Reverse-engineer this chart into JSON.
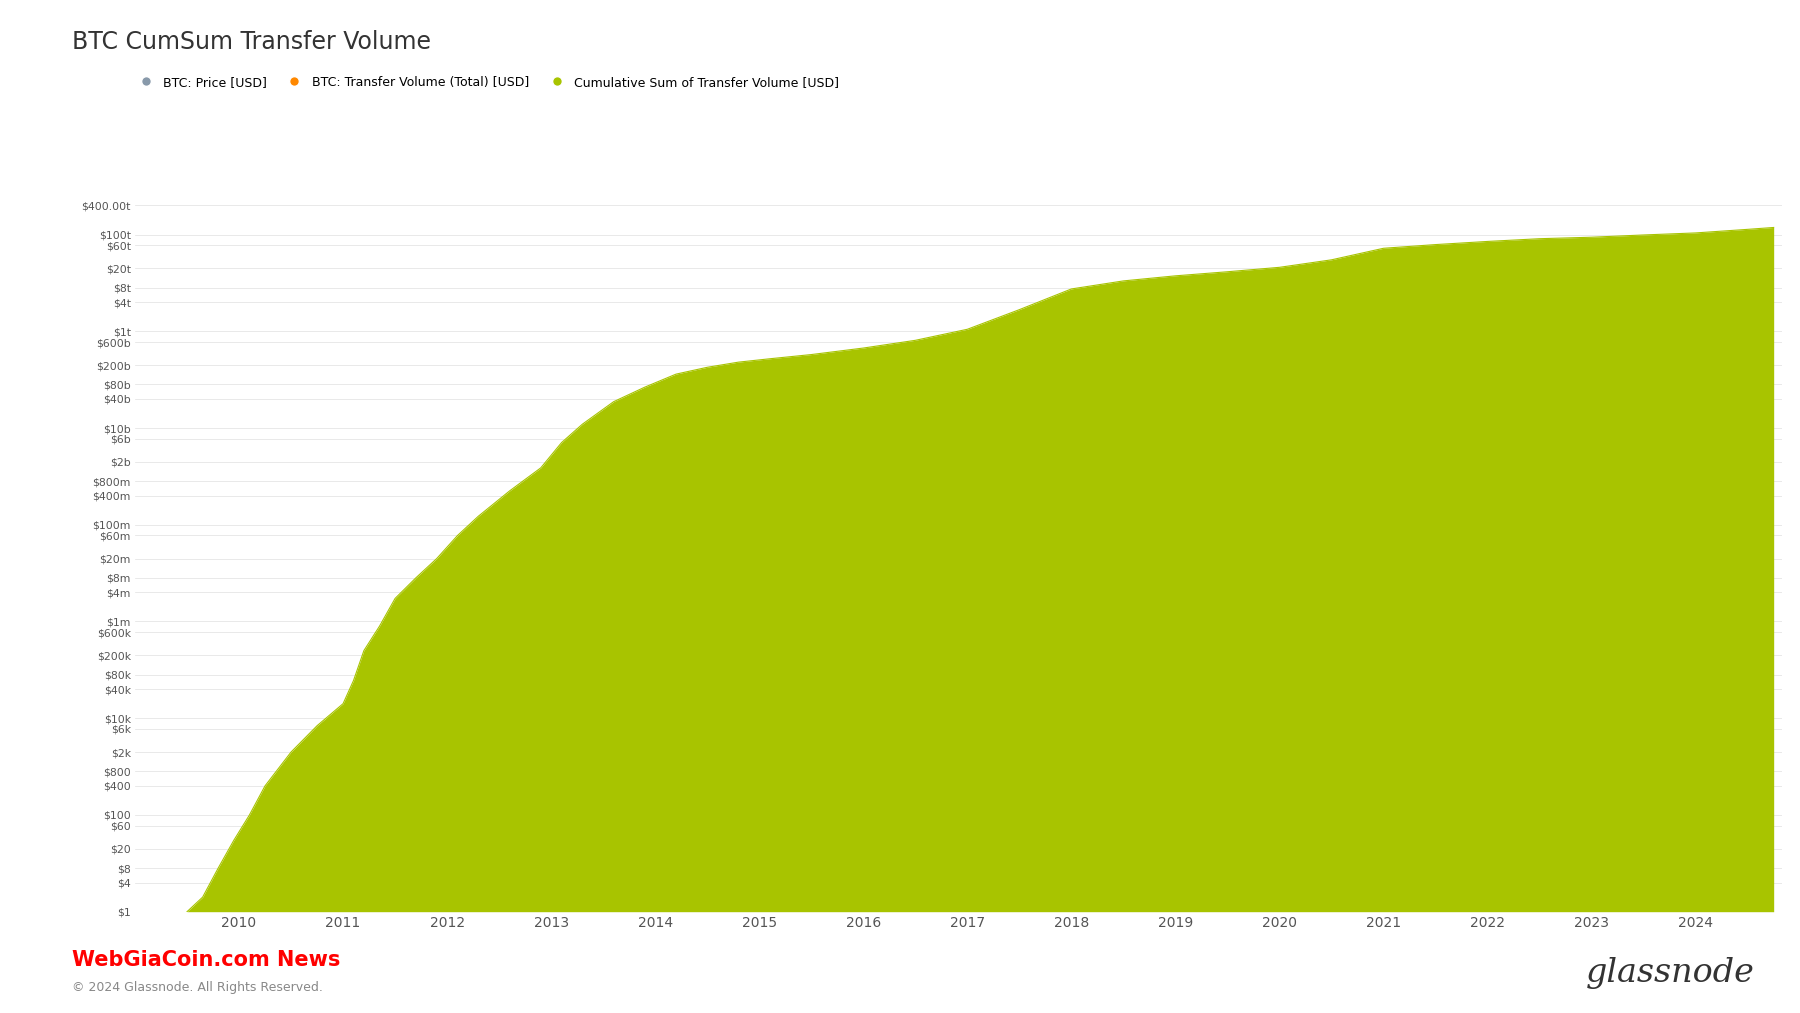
{
  "title": "BTC CumSum Transfer Volume",
  "background_color": "#ffffff",
  "fill_color": "#a8c400",
  "line_color": "#a8c400",
  "grid_color": "#e0e0e0",
  "legend_items": [
    {
      "label": "BTC: Price [USD]",
      "color": "#8899aa"
    },
    {
      "label": "BTC: Transfer Volume (Total) [USD]",
      "color": "#ff8800"
    },
    {
      "label": "Cumulative Sum of Transfer Volume [USD]",
      "color": "#a8c400"
    }
  ],
  "yticks_labels": [
    "$400.00t",
    "$100t",
    "$60t",
    "$20t",
    "$8t",
    "$4t",
    "$1t",
    "$600b",
    "$200b",
    "$80b",
    "$40b",
    "$10b",
    "$6b",
    "$2b",
    "$800m",
    "$400m",
    "$100m",
    "$60m",
    "$20m",
    "$8m",
    "$4m",
    "$1m",
    "$600k",
    "$200k",
    "$80k",
    "$40k",
    "$10k",
    "$6k",
    "$2k",
    "$800",
    "$400",
    "$100",
    "$60",
    "$20",
    "$8",
    "$4",
    "$1"
  ],
  "yticks_values": [
    400000000000000.0,
    100000000000000.0,
    60000000000000.0,
    20000000000000.0,
    8000000000000.0,
    4000000000000.0,
    1000000000000.0,
    600000000000.0,
    200000000000.0,
    80000000000.0,
    40000000000.0,
    10000000000.0,
    6000000000.0,
    2000000000.0,
    800000000.0,
    400000000.0,
    100000000.0,
    60000000.0,
    20000000.0,
    8000000.0,
    4000000.0,
    1000000.0,
    600000,
    200000,
    80000,
    40000,
    10000,
    6000,
    2000,
    800,
    400,
    100,
    60,
    20,
    8,
    4,
    1
  ],
  "xlim_start": 2009.0,
  "xlim_end": 2024.83,
  "ylim_min": 1,
  "ylim_max": 1200000000000000.0,
  "xticks": [
    2010,
    2011,
    2012,
    2013,
    2014,
    2015,
    2016,
    2017,
    2018,
    2019,
    2020,
    2021,
    2022,
    2023,
    2024
  ],
  "footer_left": "WebGiaCoin.com News",
  "footer_left_color": "#ff0000",
  "footer_copyright": "© 2024 Glassnode. All Rights Reserved.",
  "footer_right": "glassnode",
  "data_x": [
    2009.5,
    2009.65,
    2009.8,
    2009.95,
    2010.1,
    2010.25,
    2010.5,
    2010.75,
    2011.0,
    2011.1,
    2011.2,
    2011.35,
    2011.5,
    2011.7,
    2011.9,
    2012.1,
    2012.3,
    2012.6,
    2012.9,
    2013.1,
    2013.3,
    2013.6,
    2013.9,
    2014.2,
    2014.5,
    2014.8,
    2015.1,
    2015.5,
    2016.0,
    2016.5,
    2017.0,
    2017.5,
    2018.0,
    2018.5,
    2019.0,
    2019.5,
    2020.0,
    2020.5,
    2021.0,
    2021.5,
    2022.0,
    2022.5,
    2023.0,
    2023.5,
    2024.0,
    2024.5,
    2024.75
  ],
  "data_y": [
    1,
    2,
    8,
    30,
    100,
    400,
    2000,
    7000,
    20000,
    60000,
    250000,
    800000,
    3000000,
    8000000,
    20000000,
    60000000,
    150000000,
    500000000,
    1500000000,
    5000000000,
    12000000000,
    35000000000,
    70000000000,
    130000000000,
    180000000000,
    230000000000,
    270000000000,
    330000000000,
    450000000000,
    650000000000,
    1100000000000,
    2800000000000,
    7500000000000,
    11000000000000,
    14000000000000,
    17000000000000,
    21000000000000,
    30000000000000,
    52000000000000,
    62000000000000,
    72000000000000,
    82000000000000,
    88000000000000,
    98000000000000,
    108000000000000,
    128000000000000,
    140000000000000
  ]
}
